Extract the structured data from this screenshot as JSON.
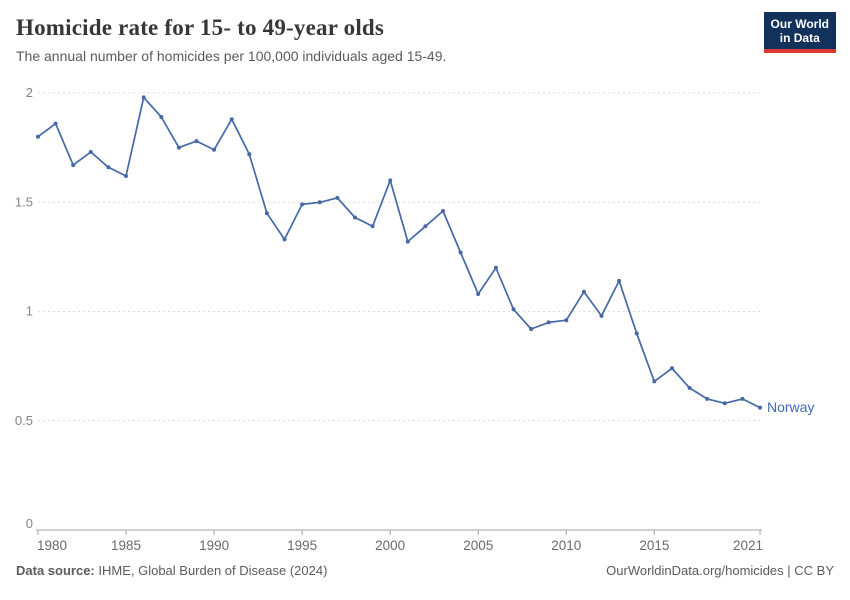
{
  "header": {
    "title": "Homicide rate for 15- to 49-year olds",
    "subtitle": "The annual number of homicides per 100,000 individuals aged 15-49."
  },
  "logo": {
    "line1": "Our World",
    "line2": "in Data",
    "bg_color": "#12325c",
    "accent_color": "#dc3d33"
  },
  "footer": {
    "source_label": "Data source:",
    "source_text": " IHME, Global Burden of Disease (2024)",
    "link_text": "OurWorldinData.org/homicides | CC BY"
  },
  "chart_data": {
    "type": "line",
    "title": "Homicide rate for 15- to 49-year olds",
    "xlabel": "",
    "ylabel": "",
    "xlim": [
      1980,
      2021
    ],
    "ylim": [
      0,
      2
    ],
    "x_ticks": [
      1980,
      1985,
      1990,
      1995,
      2000,
      2005,
      2010,
      2015,
      2021
    ],
    "y_ticks": [
      0,
      0.5,
      1,
      1.5,
      2
    ],
    "grid": "horizontal-dashed",
    "legend": "end-of-line-label",
    "colors": {
      "line": "#4568a6",
      "entity_label": "#3d6cb4",
      "gridline": "#dcdcdc",
      "axis": "#a3a3a3",
      "y_tick_label": "#858585",
      "x_tick_label": "#6b6b6b"
    },
    "series": [
      {
        "name": "Norway",
        "x": [
          1980,
          1981,
          1982,
          1983,
          1984,
          1985,
          1986,
          1987,
          1988,
          1989,
          1990,
          1991,
          1992,
          1993,
          1994,
          1995,
          1996,
          1997,
          1998,
          1999,
          2000,
          2001,
          2002,
          2003,
          2004,
          2005,
          2006,
          2007,
          2008,
          2009,
          2010,
          2011,
          2012,
          2013,
          2014,
          2015,
          2016,
          2017,
          2018,
          2019,
          2020,
          2021
        ],
        "values": [
          1.8,
          1.86,
          1.67,
          1.73,
          1.66,
          1.62,
          1.98,
          1.89,
          1.75,
          1.78,
          1.74,
          1.88,
          1.72,
          1.45,
          1.33,
          1.49,
          1.5,
          1.52,
          1.43,
          1.39,
          1.6,
          1.32,
          1.39,
          1.46,
          1.27,
          1.08,
          1.2,
          1.01,
          0.92,
          0.95,
          0.96,
          1.09,
          0.98,
          1.14,
          0.9,
          0.68,
          0.74,
          0.65,
          0.6,
          0.58,
          0.6,
          0.56
        ]
      }
    ]
  }
}
